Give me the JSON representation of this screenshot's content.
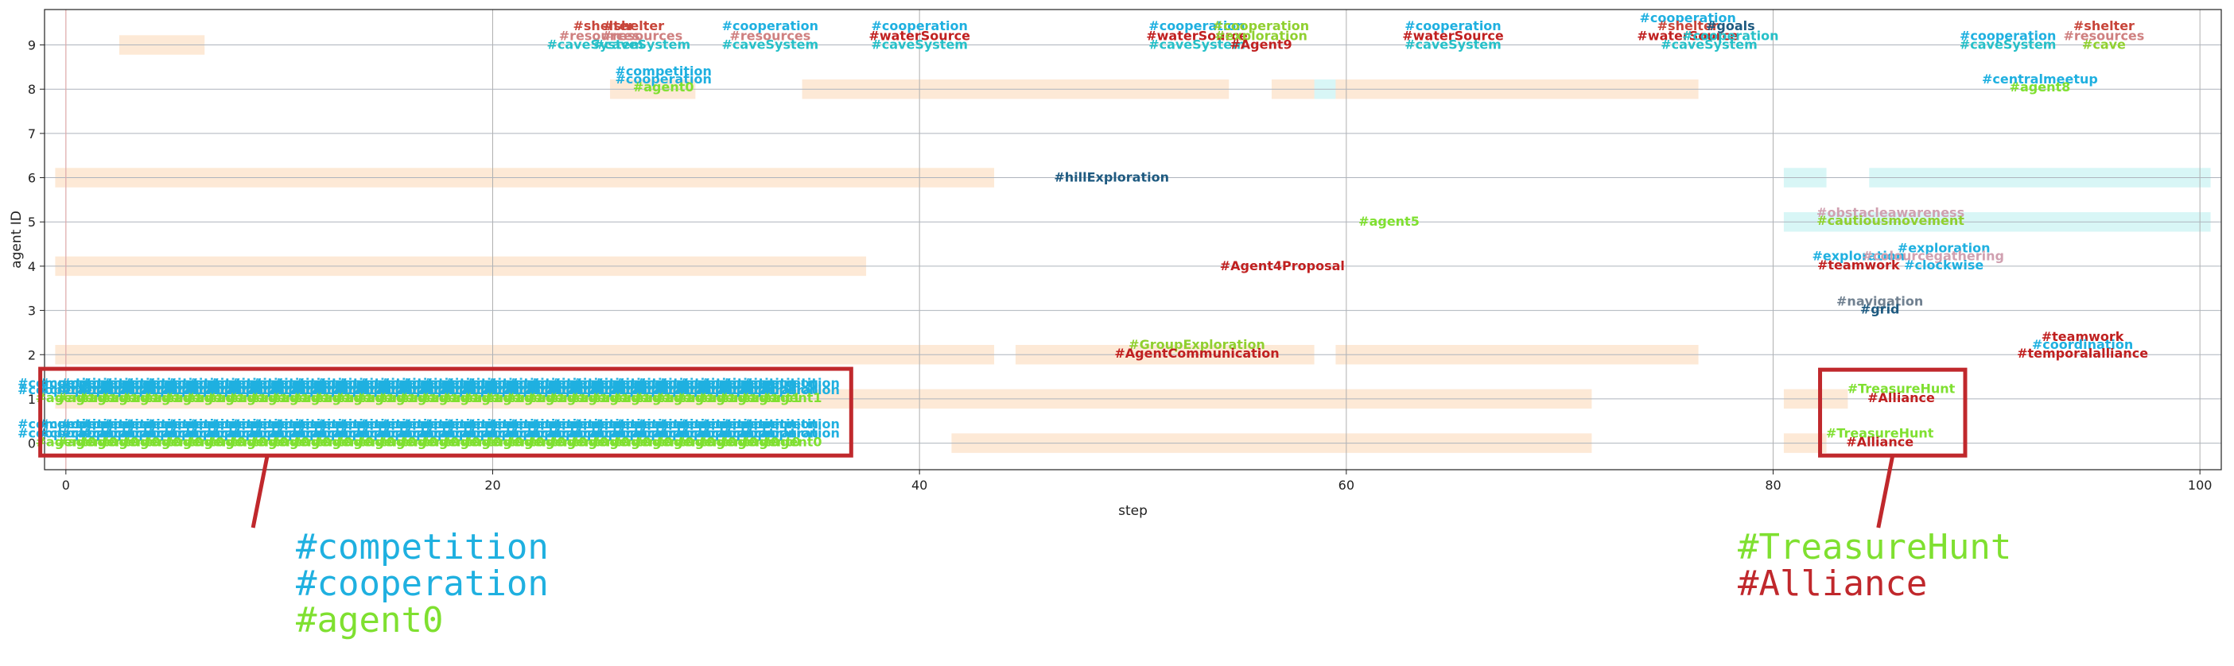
{
  "chart_data": {
    "type": "scatter",
    "xlabel": "step",
    "ylabel": "agent ID",
    "xlim": [
      -1,
      101
    ],
    "ylim": [
      -0.6,
      9.8
    ],
    "xticks": [
      0,
      20,
      40,
      60,
      80,
      100
    ],
    "yticks": [
      0,
      1,
      2,
      3,
      4,
      5,
      6,
      7,
      8,
      9
    ],
    "grid": true,
    "colors": {
      "competition": "#1fb0e0",
      "cooperation": "#1fb0e0",
      "agent": "#7fe030",
      "shelter": "#c8453a",
      "resources": "#cf8080",
      "caveSystem": "#26c0c8",
      "waterSource": "#c02020",
      "exploration": "#90d030",
      "navy": "#1e5a80",
      "grey": "#708090",
      "pink": "#d0a0b0",
      "band": "#fde9d6",
      "band_cyan": "#d8f6f6",
      "highlight": "#c0282c"
    },
    "bands": [
      {
        "agent": 9,
        "x0": 2.5,
        "x1": 6.5,
        "color": "band"
      },
      {
        "agent": 8,
        "x0": 25.5,
        "x1": 29.5,
        "color": "band"
      },
      {
        "agent": 8,
        "x0": 34.5,
        "x1": 54.5,
        "color": "band"
      },
      {
        "agent": 8,
        "x0": 56.5,
        "x1": 76.5,
        "color": "band"
      },
      {
        "agent": 8,
        "x0": 58.5,
        "x1": 59.5,
        "color": "band_cyan"
      },
      {
        "agent": 6,
        "x0": -0.5,
        "x1": 43.5,
        "color": "band"
      },
      {
        "agent": 6,
        "x0": 80.5,
        "x1": 82.5,
        "color": "band_cyan"
      },
      {
        "agent": 6,
        "x0": 84.5,
        "x1": 100.5,
        "color": "band_cyan"
      },
      {
        "agent": 5,
        "x0": 80.5,
        "x1": 100.5,
        "color": "band_cyan"
      },
      {
        "agent": 4,
        "x0": -0.5,
        "x1": 37.5,
        "color": "band"
      },
      {
        "agent": 2,
        "x0": -0.5,
        "x1": 43.5,
        "color": "band"
      },
      {
        "agent": 2,
        "x0": 44.5,
        "x1": 58.5,
        "color": "band"
      },
      {
        "agent": 2,
        "x0": 59.5,
        "x1": 76.5,
        "color": "band"
      },
      {
        "agent": 1,
        "x0": -0.5,
        "x1": 71.5,
        "color": "band"
      },
      {
        "agent": 1,
        "x0": 80.5,
        "x1": 83.5,
        "color": "band"
      },
      {
        "agent": 0,
        "x0": 41.5,
        "x1": 71.5,
        "color": "band"
      },
      {
        "agent": 0,
        "x0": 80.5,
        "x1": 82.5,
        "color": "band"
      }
    ],
    "repeat_stacks": [
      {
        "agent": 1,
        "x_start": 0,
        "x_end": 34,
        "x_step": 1,
        "lines": [
          {
            "text": "#competition",
            "color": "competition",
            "dy": 0.35
          },
          {
            "text": "#cooperation",
            "color": "cooperation",
            "dy": 0.2
          },
          {
            "text": "#agent1",
            "color": "agent",
            "dy": 0.02
          }
        ]
      },
      {
        "agent": 0,
        "x_start": 0,
        "x_end": 34,
        "x_step": 1,
        "lines": [
          {
            "text": "#competition",
            "color": "competition",
            "dy": 0.42
          },
          {
            "text": "#cooperation",
            "color": "cooperation",
            "dy": 0.22
          },
          {
            "text": "#agent0",
            "color": "agent",
            "dy": 0.02
          }
        ]
      }
    ],
    "annotations": [
      {
        "text": "#shelter",
        "x": 25.2,
        "y": 9.42,
        "color": "shelter"
      },
      {
        "text": "#shelter",
        "x": 26.6,
        "y": 9.42,
        "color": "shelter"
      },
      {
        "text": "#resources",
        "x": 25.0,
        "y": 9.2,
        "color": "resources"
      },
      {
        "text": "#resources",
        "x": 27.0,
        "y": 9.2,
        "color": "resources"
      },
      {
        "text": "#caveSystem",
        "x": 24.8,
        "y": 9.0,
        "color": "caveSystem"
      },
      {
        "text": "#caveSystem",
        "x": 27.0,
        "y": 9.0,
        "color": "caveSystem"
      },
      {
        "text": "#cooperation",
        "x": 33.0,
        "y": 9.42,
        "color": "cooperation"
      },
      {
        "text": "#resources",
        "x": 33.0,
        "y": 9.2,
        "color": "resources"
      },
      {
        "text": "#caveSystem",
        "x": 33.0,
        "y": 9.0,
        "color": "caveSystem"
      },
      {
        "text": "#cooperation",
        "x": 40.0,
        "y": 9.42,
        "color": "cooperation"
      },
      {
        "text": "#waterSource",
        "x": 40.0,
        "y": 9.2,
        "color": "waterSource"
      },
      {
        "text": "#caveSystem",
        "x": 40.0,
        "y": 9.0,
        "color": "caveSystem"
      },
      {
        "text": "#cooperation",
        "x": 53.0,
        "y": 9.42,
        "color": "cooperation"
      },
      {
        "text": "#cooperation",
        "x": 56.0,
        "y": 9.42,
        "color": "exploration"
      },
      {
        "text": "#waterSource",
        "x": 53.0,
        "y": 9.2,
        "color": "waterSource"
      },
      {
        "text": "#exploration",
        "x": 56.0,
        "y": 9.2,
        "color": "exploration"
      },
      {
        "text": "#caveSystem",
        "x": 53.0,
        "y": 9.0,
        "color": "caveSystem"
      },
      {
        "text": "#Agent9",
        "x": 56.0,
        "y": 9.0,
        "color": "waterSource"
      },
      {
        "text": "#cooperation",
        "x": 65.0,
        "y": 9.42,
        "color": "cooperation"
      },
      {
        "text": "#waterSource",
        "x": 65.0,
        "y": 9.2,
        "color": "waterSource"
      },
      {
        "text": "#caveSystem",
        "x": 65.0,
        "y": 9.0,
        "color": "caveSystem"
      },
      {
        "text": "#cooperation",
        "x": 76.0,
        "y": 9.6,
        "color": "cooperation"
      },
      {
        "text": "#shelter",
        "x": 76.0,
        "y": 9.42,
        "color": "shelter"
      },
      {
        "text": "#goals",
        "x": 78.0,
        "y": 9.42,
        "color": "navy"
      },
      {
        "text": "#waterSource",
        "x": 76.0,
        "y": 9.2,
        "color": "waterSource"
      },
      {
        "text": "#cooperation",
        "x": 78.0,
        "y": 9.2,
        "color": "caveSystem"
      },
      {
        "text": "#caveSystem",
        "x": 77.0,
        "y": 9.0,
        "color": "caveSystem"
      },
      {
        "text": "#cooperation",
        "x": 91.0,
        "y": 9.2,
        "color": "cooperation"
      },
      {
        "text": "#caveSystem",
        "x": 91.0,
        "y": 9.0,
        "color": "caveSystem"
      },
      {
        "text": "#shelter",
        "x": 95.5,
        "y": 9.42,
        "color": "shelter"
      },
      {
        "text": "#resources",
        "x": 95.5,
        "y": 9.2,
        "color": "resources"
      },
      {
        "text": "#cave",
        "x": 95.5,
        "y": 9.0,
        "color": "exploration"
      },
      {
        "text": "#competition",
        "x": 28.0,
        "y": 8.4,
        "color": "cooperation"
      },
      {
        "text": "#cooperation",
        "x": 28.0,
        "y": 8.22,
        "color": "cooperation"
      },
      {
        "text": "#agent0",
        "x": 28.0,
        "y": 8.04,
        "color": "agent"
      },
      {
        "text": "#centralmeetup",
        "x": 92.5,
        "y": 8.22,
        "color": "cooperation"
      },
      {
        "text": "#agent8",
        "x": 92.5,
        "y": 8.04,
        "color": "agent"
      },
      {
        "text": "#hillExploration",
        "x": 49.0,
        "y": 6.0,
        "color": "navy"
      },
      {
        "text": "#obstacleawareness",
        "x": 85.5,
        "y": 5.2,
        "color": "pink"
      },
      {
        "text": "#cautiousmovement",
        "x": 85.5,
        "y": 5.02,
        "color": "exploration"
      },
      {
        "text": "#agent5",
        "x": 62.0,
        "y": 5.0,
        "color": "agent"
      },
      {
        "text": "#exploration",
        "x": 88.0,
        "y": 4.4,
        "color": "cooperation"
      },
      {
        "text": "#exploration",
        "x": 84.0,
        "y": 4.22,
        "color": "cooperation"
      },
      {
        "text": "#colourcegathering",
        "x": 87.5,
        "y": 4.22,
        "color": "pink"
      },
      {
        "text": "#teamwork",
        "x": 84.0,
        "y": 4.02,
        "color": "waterSource"
      },
      {
        "text": "#clockwise",
        "x": 88.0,
        "y": 4.02,
        "color": "cooperation"
      },
      {
        "text": "#Agent4Proposal",
        "x": 57.0,
        "y": 4.0,
        "color": "waterSource"
      },
      {
        "text": "#navigation",
        "x": 85.0,
        "y": 3.2,
        "color": "grey"
      },
      {
        "text": "#grid",
        "x": 85.0,
        "y": 3.02,
        "color": "navy"
      },
      {
        "text": "#GroupExploration",
        "x": 53.0,
        "y": 2.22,
        "color": "exploration"
      },
      {
        "text": "#AgentCommunication",
        "x": 53.0,
        "y": 2.02,
        "color": "waterSource"
      },
      {
        "text": "#teamwork",
        "x": 94.5,
        "y": 2.4,
        "color": "waterSource"
      },
      {
        "text": "#coordination",
        "x": 94.5,
        "y": 2.22,
        "color": "cooperation"
      },
      {
        "text": "#temporalalliance",
        "x": 94.5,
        "y": 2.02,
        "color": "waterSource"
      },
      {
        "text": "#TreasureHunt",
        "x": 86.0,
        "y": 1.22,
        "color": "agent"
      },
      {
        "text": "#Alliance",
        "x": 86.0,
        "y": 1.02,
        "color": "waterSource"
      },
      {
        "text": "#TreasureHunt",
        "x": 85.0,
        "y": 0.22,
        "color": "agent"
      },
      {
        "text": "#Alliance",
        "x": 85.0,
        "y": 0.02,
        "color": "waterSource"
      }
    ],
    "zoom_boxes": [
      {
        "x0": -1.2,
        "x1": 36.8,
        "y0": -0.28,
        "y1": 1.68,
        "lines": [
          {
            "text": "#competition",
            "color": "competition"
          },
          {
            "text": "#cooperation",
            "color": "competition"
          },
          {
            "text": "#agent0",
            "color": "agent"
          }
        ]
      },
      {
        "x0": 82.2,
        "x1": 89.0,
        "y0": -0.28,
        "y1": 1.66,
        "lines": [
          {
            "text": "#TreasureHunt",
            "color": "agent"
          },
          {
            "text": "#Alliance",
            "color": "highlight"
          }
        ]
      }
    ]
  }
}
